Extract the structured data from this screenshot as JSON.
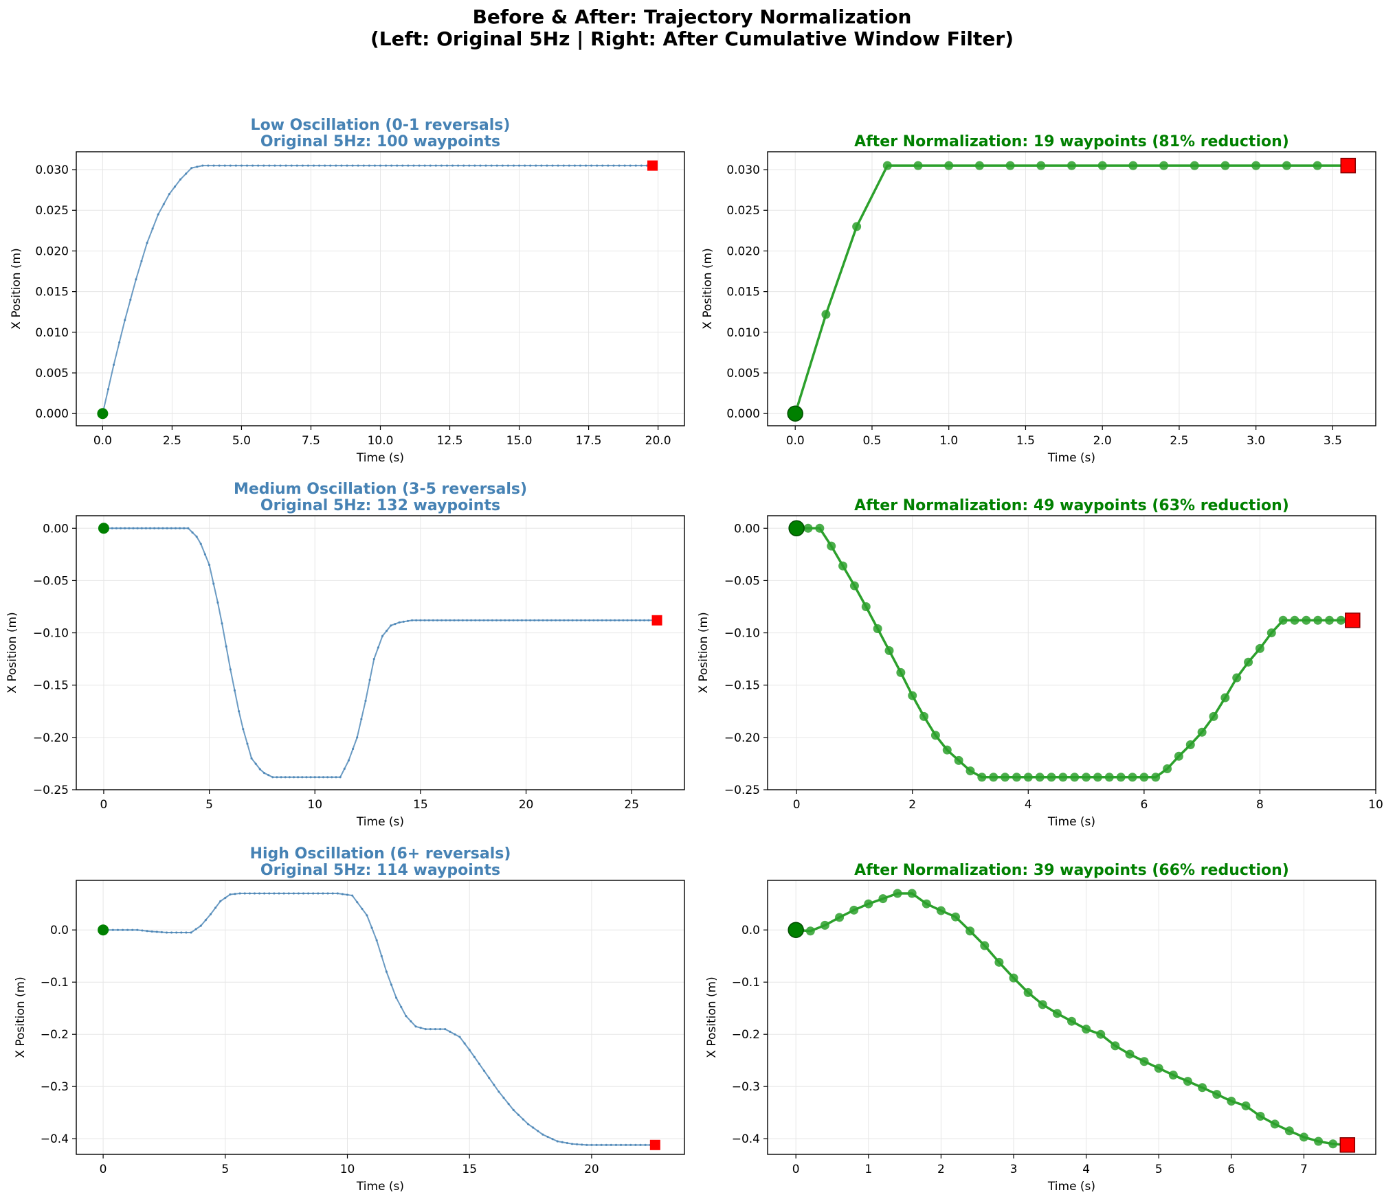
{
  "figure": {
    "title_line1": "Before & After: Trajectory Normalization",
    "title_line2": "(Left: Original 5Hz | Right: After Cumulative Window Filter)"
  },
  "colors": {
    "original": "#4682b4",
    "normalized": "#2ca02c",
    "start": "#008000",
    "end": "#ff0000"
  },
  "chart_data": [
    {
      "id": "low_orig",
      "type": "line",
      "title": [
        "Low Oscillation (0-1 reversals)",
        "Original 5Hz: 100 waypoints"
      ],
      "xlabel": "Time (s)",
      "ylabel": "X Position (m)",
      "xlim": [
        -0.95,
        20.95
      ],
      "ylim": [
        -0.0015,
        0.0322
      ],
      "xticks": [
        0.0,
        2.5,
        5.0,
        7.5,
        10.0,
        12.5,
        15.0,
        17.5,
        20.0
      ],
      "xtick_labels": [
        "0.0",
        "2.5",
        "5.0",
        "7.5",
        "10.0",
        "12.5",
        "15.0",
        "17.5",
        "20.0"
      ],
      "yticks": [
        0.0,
        0.005,
        0.01,
        0.015,
        0.02,
        0.025,
        0.03
      ],
      "ytick_labels": [
        "0.000",
        "0.005",
        "0.010",
        "0.015",
        "0.020",
        "0.025",
        "0.030"
      ],
      "series": [
        {
          "style": "original",
          "dt": 0.2,
          "count": 100,
          "keys": [
            [
              0,
              0
            ],
            [
              0.4,
              0.006
            ],
            [
              0.8,
              0.0115
            ],
            [
              1.2,
              0.0165
            ],
            [
              1.6,
              0.021
            ],
            [
              2.0,
              0.0245
            ],
            [
              2.4,
              0.027
            ],
            [
              2.8,
              0.0288
            ],
            [
              3.2,
              0.0302
            ],
            [
              3.6,
              0.0305
            ],
            [
              19.8,
              0.0305
            ]
          ]
        }
      ]
    },
    {
      "id": "low_norm",
      "type": "line",
      "title": [
        "After Normalization: 19 waypoints (81% reduction)"
      ],
      "xlabel": "Time (s)",
      "ylabel": "X Position (m)",
      "xlim": [
        -0.18,
        3.78
      ],
      "ylim": [
        -0.0015,
        0.0322
      ],
      "xticks": [
        0.0,
        0.5,
        1.0,
        1.5,
        2.0,
        2.5,
        3.0,
        3.5
      ],
      "xtick_labels": [
        "0.0",
        "0.5",
        "1.0",
        "1.5",
        "2.0",
        "2.5",
        "3.0",
        "3.5"
      ],
      "yticks": [
        0.0,
        0.005,
        0.01,
        0.015,
        0.02,
        0.025,
        0.03
      ],
      "ytick_labels": [
        "0.000",
        "0.005",
        "0.010",
        "0.015",
        "0.020",
        "0.025",
        "0.030"
      ],
      "series": [
        {
          "style": "normalized",
          "x": [
            0,
            0.2,
            0.4,
            0.6,
            0.8,
            1.0,
            1.2,
            1.4,
            1.6,
            1.8,
            2.0,
            2.2,
            2.4,
            2.6,
            2.8,
            3.0,
            3.2,
            3.4,
            3.6
          ],
          "y": [
            0,
            0.0122,
            0.023,
            0.0305,
            0.0305,
            0.0305,
            0.0305,
            0.0305,
            0.0305,
            0.0305,
            0.0305,
            0.0305,
            0.0305,
            0.0305,
            0.0305,
            0.0305,
            0.0305,
            0.0305,
            0.0305
          ]
        }
      ]
    },
    {
      "id": "med_orig",
      "type": "line",
      "title": [
        "Medium Oscillation (3-5 reversals)",
        "Original 5Hz: 132 waypoints"
      ],
      "xlabel": "Time (s)",
      "ylabel": "X Position (m)",
      "xlim": [
        -1.3,
        27.5
      ],
      "ylim": [
        -0.25,
        0.012
      ],
      "xticks": [
        0,
        5,
        10,
        15,
        20,
        25
      ],
      "xtick_labels": [
        "0",
        "5",
        "10",
        "15",
        "20",
        "25"
      ],
      "yticks": [
        0.0,
        -0.05,
        -0.1,
        -0.15,
        -0.2,
        -0.25
      ],
      "ytick_labels": [
        "0.00",
        "−0.05",
        "−0.10",
        "−0.15",
        "−0.20",
        "−0.25"
      ],
      "series": [
        {
          "style": "original",
          "dt": 0.2,
          "count": 132,
          "keys": [
            [
              0,
              0
            ],
            [
              4.0,
              0
            ],
            [
              4.5,
              -0.01
            ],
            [
              5.0,
              -0.035
            ],
            [
              5.5,
              -0.08
            ],
            [
              6.0,
              -0.135
            ],
            [
              6.5,
              -0.185
            ],
            [
              7.0,
              -0.22
            ],
            [
              7.5,
              -0.233
            ],
            [
              8.0,
              -0.238
            ],
            [
              11.2,
              -0.238
            ],
            [
              11.6,
              -0.222
            ],
            [
              12.0,
              -0.2
            ],
            [
              12.4,
              -0.165
            ],
            [
              12.8,
              -0.125
            ],
            [
              13.2,
              -0.103
            ],
            [
              13.6,
              -0.093
            ],
            [
              14.0,
              -0.09
            ],
            [
              14.6,
              -0.088
            ],
            [
              26.2,
              -0.088
            ]
          ]
        }
      ]
    },
    {
      "id": "med_norm",
      "type": "line",
      "title": [
        "After Normalization: 49 waypoints (63% reduction)"
      ],
      "xlabel": "Time (s)",
      "ylabel": "X Position (m)",
      "xlim": [
        -0.5,
        10.0
      ],
      "ylim": [
        -0.25,
        0.012
      ],
      "xticks": [
        0,
        2,
        4,
        6,
        8,
        10
      ],
      "xtick_labels": [
        "0",
        "2",
        "4",
        "6",
        "8",
        "10"
      ],
      "yticks": [
        0.0,
        -0.05,
        -0.1,
        -0.15,
        -0.2,
        -0.25
      ],
      "ytick_labels": [
        "0.00",
        "−0.05",
        "−0.10",
        "−0.15",
        "−0.20",
        "−0.25"
      ],
      "series": [
        {
          "style": "normalized",
          "x": [
            0,
            0.2,
            0.4,
            0.6,
            0.8,
            1.0,
            1.2,
            1.4,
            1.6,
            1.8,
            2.0,
            2.2,
            2.4,
            2.6,
            2.8,
            3.0,
            3.2,
            3.4,
            3.6,
            3.8,
            4.0,
            4.2,
            4.4,
            4.6,
            4.8,
            5.0,
            5.2,
            5.4,
            5.6,
            5.8,
            6.0,
            6.2,
            6.4,
            6.6,
            6.8,
            7.0,
            7.2,
            7.4,
            7.6,
            7.8,
            8.0,
            8.2,
            8.4,
            8.6,
            8.8,
            9.0,
            9.2,
            9.4,
            9.6
          ],
          "y": [
            0,
            0,
            0,
            -0.017,
            -0.036,
            -0.055,
            -0.075,
            -0.096,
            -0.117,
            -0.138,
            -0.16,
            -0.18,
            -0.198,
            -0.212,
            -0.222,
            -0.232,
            -0.238,
            -0.238,
            -0.238,
            -0.238,
            -0.238,
            -0.238,
            -0.238,
            -0.238,
            -0.238,
            -0.238,
            -0.238,
            -0.238,
            -0.238,
            -0.238,
            -0.238,
            -0.238,
            -0.23,
            -0.218,
            -0.207,
            -0.195,
            -0.18,
            -0.162,
            -0.143,
            -0.128,
            -0.115,
            -0.1,
            -0.088,
            -0.088,
            -0.088,
            -0.088,
            -0.088,
            -0.088,
            -0.088
          ]
        }
      ]
    },
    {
      "id": "high_orig",
      "type": "line",
      "title": [
        "High Oscillation (6+ reversals)",
        "Original 5Hz: 114 waypoints"
      ],
      "xlabel": "Time (s)",
      "ylabel": "X Position (m)",
      "xlim": [
        -1.1,
        23.8
      ],
      "ylim": [
        -0.43,
        0.095
      ],
      "xticks": [
        0,
        5,
        10,
        15,
        20
      ],
      "xtick_labels": [
        "0",
        "5",
        "10",
        "15",
        "20"
      ],
      "yticks": [
        0.0,
        -0.1,
        -0.2,
        -0.3,
        -0.4
      ],
      "ytick_labels": [
        "0.0",
        "−0.1",
        "−0.2",
        "−0.3",
        "−0.4"
      ],
      "series": [
        {
          "style": "original",
          "dt": 0.2,
          "count": 114,
          "keys": [
            [
              0,
              0
            ],
            [
              1.4,
              0
            ],
            [
              2.0,
              -0.003
            ],
            [
              2.6,
              -0.005
            ],
            [
              3.6,
              -0.005
            ],
            [
              4.0,
              0.008
            ],
            [
              4.4,
              0.03
            ],
            [
              4.8,
              0.055
            ],
            [
              5.2,
              0.068
            ],
            [
              5.6,
              0.07
            ],
            [
              9.6,
              0.07
            ],
            [
              10.2,
              0.066
            ],
            [
              10.8,
              0.028
            ],
            [
              11.2,
              -0.02
            ],
            [
              11.6,
              -0.08
            ],
            [
              12.0,
              -0.13
            ],
            [
              12.4,
              -0.165
            ],
            [
              12.8,
              -0.185
            ],
            [
              13.2,
              -0.19
            ],
            [
              14.0,
              -0.19
            ],
            [
              14.6,
              -0.205
            ],
            [
              15.0,
              -0.23
            ],
            [
              15.6,
              -0.27
            ],
            [
              16.2,
              -0.31
            ],
            [
              16.8,
              -0.345
            ],
            [
              17.4,
              -0.372
            ],
            [
              18.0,
              -0.392
            ],
            [
              18.6,
              -0.405
            ],
            [
              19.2,
              -0.41
            ],
            [
              19.8,
              -0.412
            ],
            [
              22.6,
              -0.412
            ]
          ]
        }
      ]
    },
    {
      "id": "high_norm",
      "type": "line",
      "title": [
        "After Normalization: 39 waypoints (66% reduction)"
      ],
      "xlabel": "Time (s)",
      "ylabel": "X Position (m)",
      "xlim": [
        -0.39,
        7.99
      ],
      "ylim": [
        -0.43,
        0.095
      ],
      "xticks": [
        0,
        1,
        2,
        3,
        4,
        5,
        6,
        7
      ],
      "xtick_labels": [
        "0",
        "1",
        "2",
        "3",
        "4",
        "5",
        "6",
        "7"
      ],
      "yticks": [
        0.0,
        -0.1,
        -0.2,
        -0.3,
        -0.4
      ],
      "ytick_labels": [
        "0.0",
        "−0.1",
        "−0.2",
        "−0.3",
        "−0.4"
      ],
      "series": [
        {
          "style": "normalized",
          "x": [
            0,
            0.2,
            0.4,
            0.6,
            0.8,
            1.0,
            1.2,
            1.4,
            1.6,
            1.8,
            2.0,
            2.2,
            2.4,
            2.6,
            2.8,
            3.0,
            3.2,
            3.4,
            3.6,
            3.8,
            4.0,
            4.2,
            4.4,
            4.6,
            4.8,
            5.0,
            5.2,
            5.4,
            5.6,
            5.8,
            6.0,
            6.2,
            6.4,
            6.6,
            6.8,
            7.0,
            7.2,
            7.4,
            7.6
          ],
          "y": [
            0,
            -0.002,
            0.009,
            0.024,
            0.038,
            0.05,
            0.06,
            0.07,
            0.07,
            0.05,
            0.037,
            0.025,
            -0.002,
            -0.03,
            -0.062,
            -0.092,
            -0.12,
            -0.143,
            -0.16,
            -0.175,
            -0.19,
            -0.2,
            -0.222,
            -0.238,
            -0.252,
            -0.265,
            -0.278,
            -0.29,
            -0.302,
            -0.315,
            -0.328,
            -0.337,
            -0.357,
            -0.372,
            -0.385,
            -0.397,
            -0.405,
            -0.41,
            -0.412
          ]
        }
      ]
    }
  ]
}
